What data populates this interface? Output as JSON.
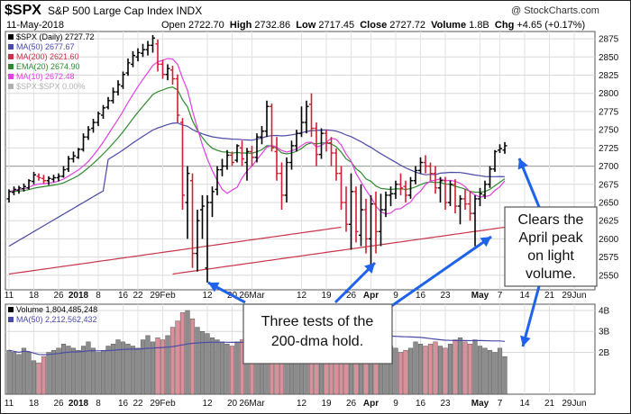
{
  "header": {
    "ticker": "$SPX",
    "index_name": "S&P 500 Large Cap Index INDX",
    "date": "11-May-2018",
    "open_label": "Open",
    "open": "2722.70",
    "high_label": "High",
    "high": "2732.86",
    "low_label": "Low",
    "low": "2717.45",
    "close_label": "Close",
    "close": "2727.72",
    "volume_label": "Volume",
    "volume": "1.8B",
    "chg_label": "Chg",
    "chg": "+4.65 (+0.17%)",
    "credit": "@ StockCharts.com"
  },
  "legend": [
    {
      "label": "$SPX (Daily) 2727.72",
      "color": "#000000",
      "kind": "bar"
    },
    {
      "label": "MA(50) 2677.67",
      "color": "#4a4aa8",
      "kind": "line"
    },
    {
      "label": "MA(200) 2621.60",
      "color": "#c8344a",
      "kind": "line"
    },
    {
      "label": "EMA(20) 2674.90",
      "color": "#2f8a2f",
      "kind": "line"
    },
    {
      "label": "MA(10) 2672.48",
      "color": "#e040e0",
      "kind": "line"
    },
    {
      "label": "$SPX:$SPX 0.00%",
      "color": "#b0b0b0",
      "kind": "line"
    }
  ],
  "volume_legend": [
    {
      "label": "Volume 1,804,485,248",
      "color": "#000000"
    },
    {
      "label": "MA(50) 2,212,562,432",
      "color": "#4a4aa8"
    }
  ],
  "annotations": {
    "tests": [
      "Three tests of the",
      "200-dma hold."
    ],
    "clears": [
      "Clears the",
      "April peak",
      "on light",
      "volume."
    ]
  },
  "chart_data": {
    "type": "ohlc",
    "price_axis": {
      "ticks": [
        2550,
        2575,
        2600,
        2625,
        2650,
        2675,
        2700,
        2725,
        2750,
        2775,
        2800,
        2825,
        2850,
        2875
      ],
      "ylim": [
        2530,
        2885
      ]
    },
    "volume_axis": {
      "ticks": [
        "2B",
        "3B",
        "4B"
      ],
      "tick_values": [
        2,
        3,
        4
      ],
      "ylim": [
        0,
        4.3
      ]
    },
    "x_ticks": [
      {
        "label": "11",
        "day": 0
      },
      {
        "label": "18",
        "day": 5
      },
      {
        "label": "26",
        "day": 10
      },
      {
        "label": "2018",
        "day": 14,
        "bold": true
      },
      {
        "label": "8",
        "day": 18
      },
      {
        "label": "16",
        "day": 23
      },
      {
        "label": "22",
        "day": 26
      },
      {
        "label": "29Feb",
        "day": 31
      },
      {
        "label": "12",
        "day": 40
      },
      {
        "label": "20",
        "day": 45
      },
      {
        "label": "26Mar",
        "day": 49
      },
      {
        "label": "12",
        "day": 59
      },
      {
        "label": "19",
        "day": 64
      },
      {
        "label": "26",
        "day": 69
      },
      {
        "label": "Apr",
        "day": 73,
        "bold": true
      },
      {
        "label": "9",
        "day": 78
      },
      {
        "label": "16",
        "day": 83
      },
      {
        "label": "23",
        "day": 88
      },
      {
        "label": "May",
        "day": 95,
        "bold": true
      },
      {
        "label": "7",
        "day": 99
      },
      {
        "label": "14",
        "day": 104
      },
      {
        "label": "21",
        "day": 109
      },
      {
        "label": "29Jun",
        "day": 114
      }
    ],
    "price_bars": [
      [
        2655,
        2668,
        2650,
        2665
      ],
      [
        2664,
        2672,
        2660,
        2668
      ],
      [
        2667,
        2673,
        2662,
        2670
      ],
      [
        2669,
        2676,
        2665,
        2672
      ],
      [
        2670,
        2682,
        2668,
        2680
      ],
      [
        2679,
        2692,
        2675,
        2688
      ],
      [
        2686,
        2690,
        2680,
        2684
      ],
      [
        2683,
        2688,
        2676,
        2680
      ],
      [
        2680,
        2686,
        2674,
        2683
      ],
      [
        2682,
        2688,
        2678,
        2684
      ],
      [
        2684,
        2690,
        2679,
        2686
      ],
      [
        2686,
        2700,
        2684,
        2695
      ],
      [
        2696,
        2714,
        2692,
        2710
      ],
      [
        2710,
        2720,
        2705,
        2714
      ],
      [
        2712,
        2725,
        2710,
        2723
      ],
      [
        2723,
        2745,
        2720,
        2740
      ],
      [
        2740,
        2755,
        2736,
        2750
      ],
      [
        2752,
        2765,
        2746,
        2760
      ],
      [
        2760,
        2775,
        2755,
        2772
      ],
      [
        2770,
        2784,
        2765,
        2780
      ],
      [
        2781,
        2795,
        2778,
        2790
      ],
      [
        2790,
        2808,
        2786,
        2802
      ],
      [
        2802,
        2818,
        2797,
        2812
      ],
      [
        2810,
        2830,
        2806,
        2826
      ],
      [
        2828,
        2848,
        2824,
        2842
      ],
      [
        2840,
        2858,
        2836,
        2852
      ],
      [
        2850,
        2862,
        2844,
        2856
      ],
      [
        2855,
        2868,
        2850,
        2860
      ],
      [
        2860,
        2872,
        2852,
        2866
      ],
      [
        2866,
        2880,
        2856,
        2876
      ],
      [
        2868,
        2874,
        2830,
        2840
      ],
      [
        2840,
        2846,
        2820,
        2826
      ],
      [
        2826,
        2840,
        2818,
        2834
      ],
      [
        2832,
        2838,
        2812,
        2820
      ],
      [
        2820,
        2826,
        2760,
        2770
      ],
      [
        2760,
        2766,
        2640,
        2660
      ],
      [
        2650,
        2700,
        2600,
        2690
      ],
      [
        2680,
        2690,
        2560,
        2580
      ],
      [
        2580,
        2640,
        2555,
        2625
      ],
      [
        2640,
        2660,
        2600,
        2645
      ],
      [
        2560,
        2660,
        2540,
        2650
      ],
      [
        2650,
        2672,
        2630,
        2665
      ],
      [
        2668,
        2700,
        2660,
        2695
      ],
      [
        2695,
        2710,
        2686,
        2700
      ],
      [
        2700,
        2722,
        2695,
        2715
      ],
      [
        2715,
        2720,
        2700,
        2705
      ],
      [
        2708,
        2730,
        2705,
        2728
      ],
      [
        2725,
        2735,
        2700,
        2710
      ],
      [
        2705,
        2725,
        2680,
        2720
      ],
      [
        2720,
        2728,
        2700,
        2712
      ],
      [
        2712,
        2745,
        2705,
        2740
      ],
      [
        2740,
        2755,
        2730,
        2748
      ],
      [
        2748,
        2790,
        2740,
        2782
      ],
      [
        2782,
        2786,
        2720,
        2725
      ],
      [
        2720,
        2740,
        2680,
        2690
      ],
      [
        2690,
        2705,
        2640,
        2660
      ],
      [
        2660,
        2712,
        2650,
        2705
      ],
      [
        2705,
        2735,
        2695,
        2728
      ],
      [
        2728,
        2750,
        2720,
        2745
      ],
      [
        2745,
        2782,
        2740,
        2760
      ],
      [
        2760,
        2790,
        2745,
        2782
      ],
      [
        2785,
        2800,
        2740,
        2752
      ],
      [
        2752,
        2760,
        2700,
        2716
      ],
      [
        2716,
        2752,
        2710,
        2745
      ],
      [
        2745,
        2750,
        2720,
        2732
      ],
      [
        2732,
        2740,
        2700,
        2718
      ],
      [
        2718,
        2724,
        2680,
        2690
      ],
      [
        2690,
        2700,
        2640,
        2650
      ],
      [
        2650,
        2672,
        2610,
        2620
      ],
      [
        2620,
        2690,
        2585,
        2665
      ],
      [
        2665,
        2672,
        2595,
        2610
      ],
      [
        2605,
        2675,
        2590,
        2640
      ],
      [
        2640,
        2655,
        2580,
        2600
      ],
      [
        2600,
        2660,
        2555,
        2648
      ],
      [
        2648,
        2665,
        2580,
        2610
      ],
      [
        2610,
        2662,
        2590,
        2640
      ],
      [
        2640,
        2665,
        2630,
        2660
      ],
      [
        2660,
        2672,
        2645,
        2662
      ],
      [
        2662,
        2680,
        2655,
        2675
      ],
      [
        2675,
        2690,
        2660,
        2670
      ],
      [
        2672,
        2680,
        2650,
        2660
      ],
      [
        2660,
        2685,
        2655,
        2680
      ],
      [
        2680,
        2700,
        2675,
        2694
      ],
      [
        2694,
        2712,
        2690,
        2705
      ],
      [
        2705,
        2715,
        2690,
        2700
      ],
      [
        2700,
        2705,
        2680,
        2690
      ],
      [
        2690,
        2700,
        2662,
        2670
      ],
      [
        2670,
        2685,
        2650,
        2680
      ],
      [
        2680,
        2685,
        2640,
        2650
      ],
      [
        2650,
        2680,
        2645,
        2675
      ],
      [
        2675,
        2682,
        2635,
        2645
      ],
      [
        2645,
        2660,
        2620,
        2655
      ],
      [
        2655,
        2668,
        2640,
        2648
      ],
      [
        2648,
        2666,
        2625,
        2635
      ],
      [
        2635,
        2660,
        2590,
        2655
      ],
      [
        2655,
        2670,
        2645,
        2662
      ],
      [
        2660,
        2680,
        2655,
        2675
      ],
      [
        2675,
        2700,
        2670,
        2696
      ],
      [
        2696,
        2722,
        2692,
        2720
      ],
      [
        2722,
        2730,
        2718,
        2724
      ],
      [
        2722,
        2733,
        2717,
        2728
      ]
    ],
    "volume": [
      2.1,
      2.0,
      1.9,
      2.2,
      2.0,
      1.6,
      1.5,
      1.8,
      2.0,
      2.1,
      2.2,
      2.4,
      2.3,
      2.2,
      2.1,
      2.3,
      2.5,
      2.2,
      2.0,
      2.1,
      2.3,
      2.4,
      2.6,
      2.5,
      2.4,
      2.3,
      2.2,
      2.6,
      2.8,
      2.5,
      2.7,
      2.6,
      2.8,
      3.2,
      3.5,
      3.9,
      4.0,
      3.6,
      3.2,
      3.0,
      2.9,
      2.7,
      2.6,
      2.5,
      2.4,
      2.3,
      2.5,
      2.6,
      2.2,
      2.1,
      2.9,
      3.2,
      2.7,
      2.6,
      2.8,
      2.9,
      2.5,
      2.3,
      2.4,
      2.2,
      2.6,
      2.8,
      2.6,
      2.5,
      2.4,
      2.6,
      3.0,
      3.1,
      3.4,
      3.2,
      2.9,
      2.8,
      3.0,
      2.9,
      2.7,
      2.5,
      2.4,
      2.3,
      2.2,
      2.0,
      2.1,
      2.2,
      2.5,
      2.4,
      2.3,
      2.4,
      2.5,
      2.3,
      2.2,
      2.4,
      2.6,
      2.7,
      2.5,
      2.4,
      2.6,
      2.3,
      2.2,
      2.1,
      2.0,
      2.2,
      1.8
    ]
  }
}
